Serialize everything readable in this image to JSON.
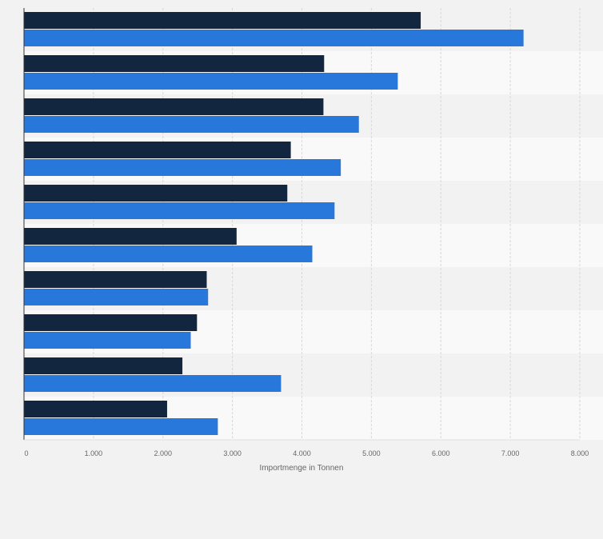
{
  "chart_data": {
    "type": "bar",
    "orientation": "horizontal",
    "categories": [
      "",
      "",
      "",
      "",
      "",
      "",
      "",
      "",
      "",
      ""
    ],
    "series": [
      {
        "color": "#12263f",
        "values": [
          5710,
          4320,
          4310,
          3840,
          3790,
          3060,
          2630,
          2490,
          2280,
          2060
        ]
      },
      {
        "color": "#2878dc",
        "values": [
          7190,
          5380,
          4820,
          4560,
          4470,
          4150,
          2650,
          2400,
          3700,
          2790
        ]
      }
    ],
    "xlim": [
      0,
      8000
    ],
    "xticks": [
      "0",
      "1.000",
      "2.000",
      "3.000",
      "4.000",
      "5.000",
      "6.000",
      "7.000",
      "8.000"
    ],
    "xtick_values": [
      0,
      1000,
      2000,
      3000,
      4000,
      5000,
      6000,
      7000,
      8000
    ],
    "xlabel": "Importmenge in Tonnen",
    "grid": "vertical",
    "legend": "none"
  }
}
